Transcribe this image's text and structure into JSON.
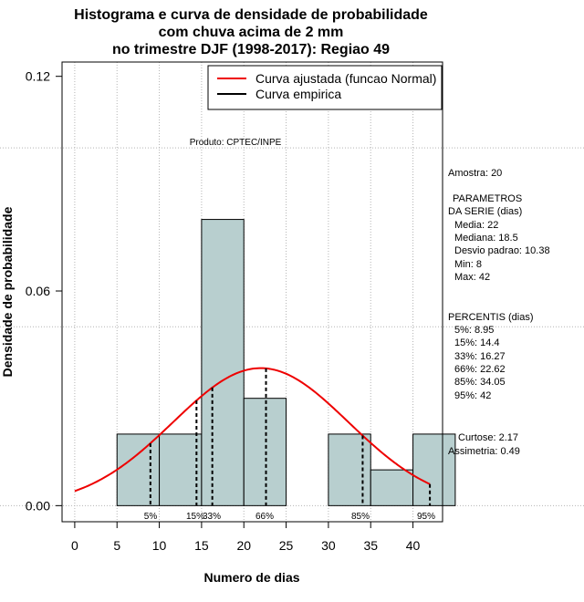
{
  "chart_data": {
    "type": "bar",
    "title": [
      "Histograma e curva de densidade de probabilidade",
      "com chuva acima de 2 mm",
      "no trimestre DJF (1998-2017): Regiao 49"
    ],
    "xlabel": "Numero de dias",
    "ylabel": "Densidade de probabilidade",
    "xlim": [
      -1.5,
      43.5
    ],
    "ylim": [
      -0.0045,
      0.124
    ],
    "x_ticks": [
      0,
      5,
      10,
      15,
      20,
      25,
      30,
      35,
      40
    ],
    "y_ticks": [
      0.0,
      0.06,
      0.12
    ],
    "y_tick_labels": [
      "0.00",
      "0.06",
      "0.12"
    ],
    "bins": [
      {
        "x0": 5,
        "x1": 10,
        "density": 0.02
      },
      {
        "x0": 10,
        "x1": 15,
        "density": 0.02
      },
      {
        "x0": 15,
        "x1": 20,
        "density": 0.08
      },
      {
        "x0": 20,
        "x1": 25,
        "density": 0.03
      },
      {
        "x0": 25,
        "x1": 30,
        "density": 0.0
      },
      {
        "x0": 30,
        "x1": 35,
        "density": 0.02
      },
      {
        "x0": 35,
        "x1": 40,
        "density": 0.01
      },
      {
        "x0": 40,
        "x1": 45,
        "density": 0.02
      }
    ],
    "normal_fit": {
      "mean": 22,
      "sd": 10.38,
      "x_from": 0,
      "x_to": 42
    },
    "percentile_lines": [
      {
        "label": "5%",
        "value": 8.95
      },
      {
        "label": "15%",
        "value": 14.4
      },
      {
        "label": "33%",
        "value": 16.27
      },
      {
        "label": "66%",
        "value": 22.62
      },
      {
        "label": "85%",
        "value": 34.05
      },
      {
        "label": "95%",
        "value": 42
      }
    ],
    "legend": [
      {
        "label": "Curva ajustada (funcao Normal)",
        "color": "#ee0000"
      },
      {
        "label": "Curva empirica",
        "color": "#000000"
      }
    ],
    "grid": true,
    "legend_position": "top-right",
    "colors": {
      "bar_fill": "#b8cfcf",
      "curve": "#ee0000",
      "grid": "#b4b4b4"
    }
  },
  "product_label": "Produto: CPTEC/INPE",
  "stats": {
    "amostra": "Amostra: 20",
    "params_header_1": "PARAMETROS",
    "params_header_2": "DA SERIE (dias)",
    "media": "Media: 22",
    "mediana": "Mediana: 18.5",
    "desvio": "Desvio padrao: 10.38",
    "min": "Min: 8",
    "max": "Max: 42",
    "percentis_header": "PERCENTIS (dias)",
    "p5": "5%: 8.95",
    "p15": "15%: 14.4",
    "p33": "33%: 16.27",
    "p66": "66%: 22.62",
    "p85": "85%: 34.05",
    "p95": "95%: 42",
    "curtose": "Curtose: 2.17",
    "assimetria": "Assimetria: 0.49"
  }
}
